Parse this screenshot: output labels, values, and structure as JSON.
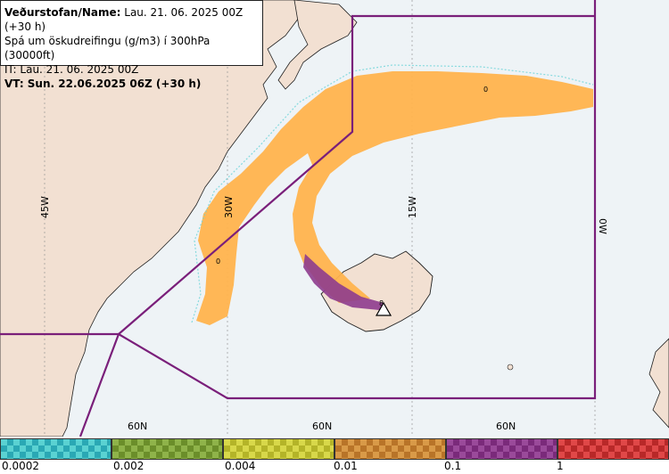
{
  "header": {
    "line1_label": "Veðurstofan/Name:",
    "line1_value": "Lau. 21. 06. 2025 00Z (+30 h)",
    "line2": "Spá um öskudreifingu (g/m3) í 300hPa (30000ft)",
    "line3": "IT: Lau. 21. 06. 2025 00Z",
    "line4": "VT: Sun. 22.06.2025 06Z (+30 h)"
  },
  "map": {
    "longitude_labels": [
      "45W",
      "30W",
      "15W",
      "0W"
    ],
    "latitude_labels": [
      "60N",
      "60N",
      "60N"
    ],
    "contour_labels": [
      "0",
      "0",
      "8"
    ],
    "colors": {
      "land": "#f2e0d2",
      "sea": "#eef3f6",
      "boundary": "#7a1f7a",
      "plume": "#ffb34d"
    }
  },
  "legend": {
    "ticks": [
      "0.0002",
      "0.002",
      "0.004",
      "0.01",
      "0.1",
      "1"
    ],
    "swatches": [
      {
        "c1": "#5ad2d2",
        "c2": "#2aa8b4"
      },
      {
        "c1": "#8fb34a",
        "c2": "#6b8e2a"
      },
      {
        "c1": "#d8d84a",
        "c2": "#b4b428"
      },
      {
        "c1": "#d99a48",
        "c2": "#b87428"
      },
      {
        "c1": "#9a4a9a",
        "c2": "#7a2a7a"
      },
      {
        "c1": "#e04848",
        "c2": "#b82828"
      }
    ]
  }
}
